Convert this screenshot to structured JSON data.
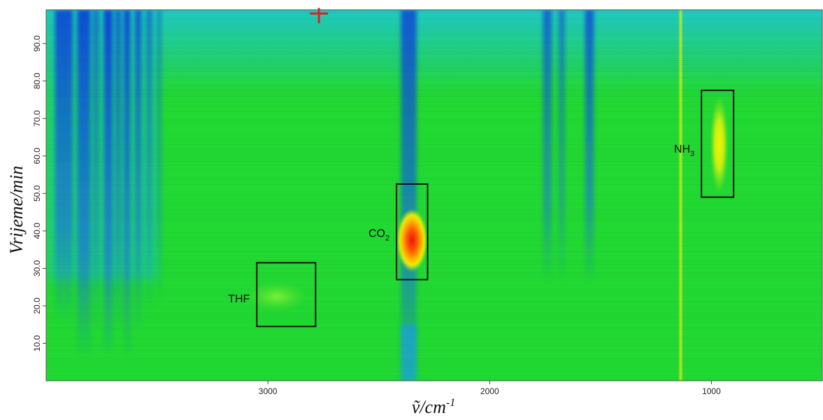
{
  "chart_data": {
    "type": "heatmap",
    "title": "",
    "xlabel": "ṽ/cm",
    "xlabel_superscript": "-1",
    "ylabel": "Vrijeme/min",
    "x_axis": {
      "range_cm1": [
        4000,
        500
      ],
      "reversed": true,
      "ticks": [
        3000,
        2000,
        1000
      ],
      "tick_labels": [
        "3000",
        "2000",
        "1000"
      ]
    },
    "y_axis": {
      "range_min": [
        0,
        99
      ],
      "ticks": [
        10,
        20,
        30,
        40,
        50,
        60,
        70,
        80,
        90
      ],
      "tick_labels": [
        "10.0",
        "20.0",
        "30.0",
        "40.0",
        "50.0",
        "60.0",
        "70.0",
        "80.0",
        "90.0"
      ]
    },
    "grid": false,
    "colormap": [
      "#0a2ec8",
      "#0f6fe0",
      "#1fb8d8",
      "#1fd2a8",
      "#22d832",
      "#b8f01e",
      "#f0f000",
      "#ff8000",
      "#e81010"
    ],
    "background_color": "#22d832",
    "annotations": [
      {
        "label": "THF",
        "subscript": "",
        "x_range_cm1": [
          3050,
          2785
        ],
        "y_range_min": [
          14.5,
          31.5
        ],
        "peak": {
          "x_cm1": 2960,
          "y_min": 22.5,
          "intensity": "light-green"
        }
      },
      {
        "label": "CO",
        "subscript": "2",
        "x_range_cm1": [
          2420,
          2280
        ],
        "y_range_min": [
          27,
          52.5
        ],
        "peak": {
          "x_cm1": 2350,
          "y_min": 37.5,
          "intensity": "red"
        }
      },
      {
        "label": "NH",
        "subscript": "3",
        "x_range_cm1": [
          1045,
          900
        ],
        "y_range_min": [
          49,
          77.5
        ],
        "peak": {
          "x_cm1": 965,
          "y_min": 63,
          "intensity": "yellow"
        }
      }
    ],
    "cursor_marker": {
      "x_cm1": 2770,
      "y_min": 98,
      "color": "#e02020"
    }
  }
}
